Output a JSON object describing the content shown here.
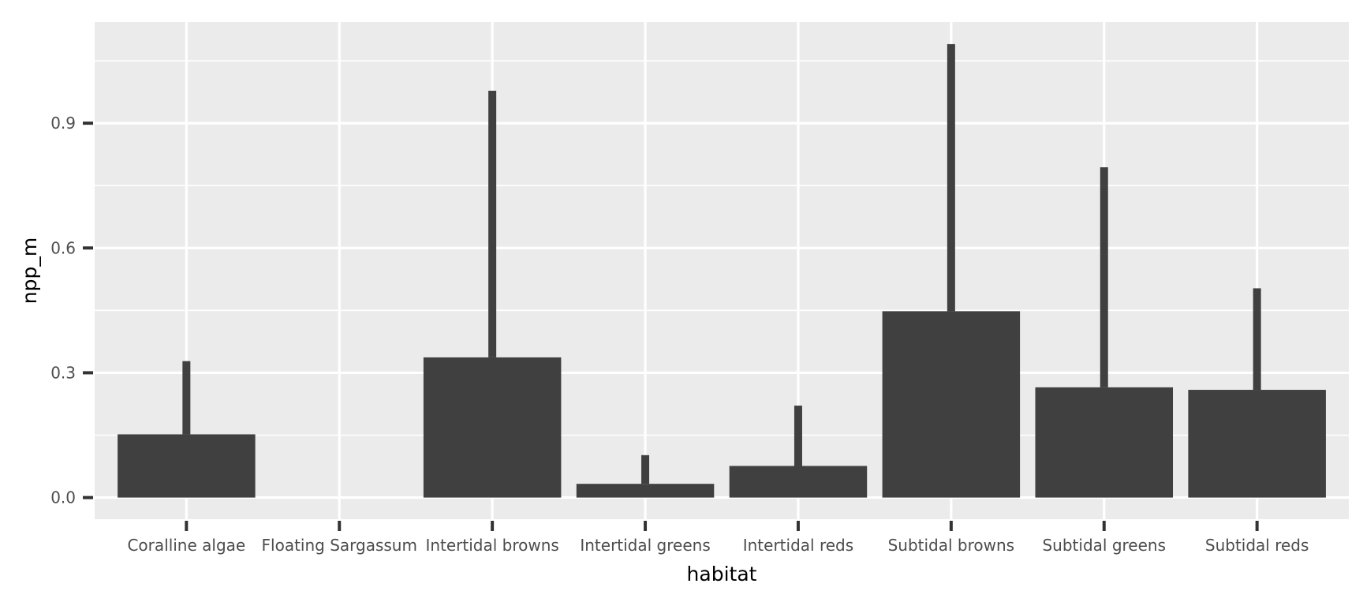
{
  "chart_data": {
    "type": "bar",
    "xlabel": "habitat",
    "ylabel": "npp_m",
    "categories": [
      "Coralline algae",
      "Floating Sargassum",
      "Intertidal browns",
      "Intertidal greens",
      "Intertidal reds",
      "Subtidal browns",
      "Subtidal greens",
      "Subtidal reds"
    ],
    "values": [
      0.152,
      null,
      0.337,
      0.033,
      0.076,
      0.448,
      0.265,
      0.259
    ],
    "error_upper": [
      0.328,
      null,
      0.978,
      0.102,
      0.221,
      1.09,
      0.794,
      0.503
    ],
    "yticks": [
      0.0,
      0.3,
      0.6,
      0.9
    ],
    "ytick_labels": [
      "0.0",
      "0.3",
      "0.6",
      "0.9"
    ],
    "ylim": [
      -0.052,
      1.143
    ],
    "grid": true,
    "bar_color": "#404040",
    "panel_color": "#ebebeb",
    "grid_color": "#ffffff",
    "text_color": "#4d4d4d",
    "tick_color": "#333333"
  }
}
